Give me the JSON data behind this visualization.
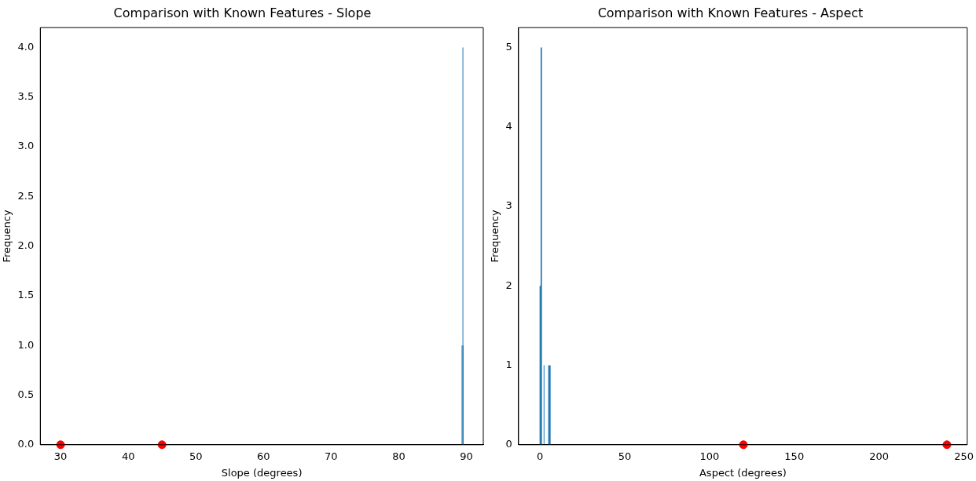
{
  "chart_data": [
    {
      "type": "histogram",
      "title": "Comparison with Known Features - Slope",
      "xlabel": "Slope (degrees)",
      "ylabel": "Frequency",
      "bins": [
        89.3,
        89.43,
        89.47,
        89.57
      ],
      "values": [
        1,
        4,
        1
      ],
      "color": "#1f77b4",
      "xlim": [
        27,
        92.5
      ],
      "xticks": [
        30,
        40,
        50,
        60,
        70,
        80,
        90
      ],
      "ylim": [
        0,
        4.2
      ],
      "yticks": [
        {
          "value": 0,
          "label": "0.0"
        },
        {
          "value": 0.5,
          "label": "0.5"
        },
        {
          "value": 1,
          "label": "1.0"
        },
        {
          "value": 1.5,
          "label": "1.5"
        },
        {
          "value": 2,
          "label": "2.0"
        },
        {
          "value": 2.5,
          "label": "2.5"
        },
        {
          "value": 3,
          "label": "3.0"
        },
        {
          "value": 3.5,
          "label": "3.5"
        },
        {
          "value": 4,
          "label": "4.0"
        }
      ],
      "grid": false,
      "legend": false,
      "series": [
        {
          "type": "scatter",
          "color": "#ff0000",
          "x": [
            30,
            45
          ],
          "values": [
            0,
            0
          ]
        }
      ]
    },
    {
      "type": "histogram",
      "title": "Comparison with Known Features - Aspect",
      "xlabel": "Aspect (degrees)",
      "ylabel": "Frequency",
      "bins": [
        -0.2,
        0.4,
        1.2,
        2.2,
        2.6,
        4.9,
        6.3
      ],
      "values": [
        2,
        5,
        0,
        1,
        0,
        1
      ],
      "color": "#1f77b4",
      "xlim": [
        -12.6,
        252
      ],
      "xticks": [
        0,
        50,
        100,
        150,
        200,
        250
      ],
      "ylim": [
        0,
        5.25
      ],
      "yticks": [
        0,
        1,
        2,
        3,
        4,
        5
      ],
      "grid": false,
      "legend": false,
      "series": [
        {
          "type": "scatter",
          "color": "#ff0000",
          "x": [
            120,
            240
          ],
          "values": [
            0,
            0
          ]
        }
      ]
    }
  ]
}
